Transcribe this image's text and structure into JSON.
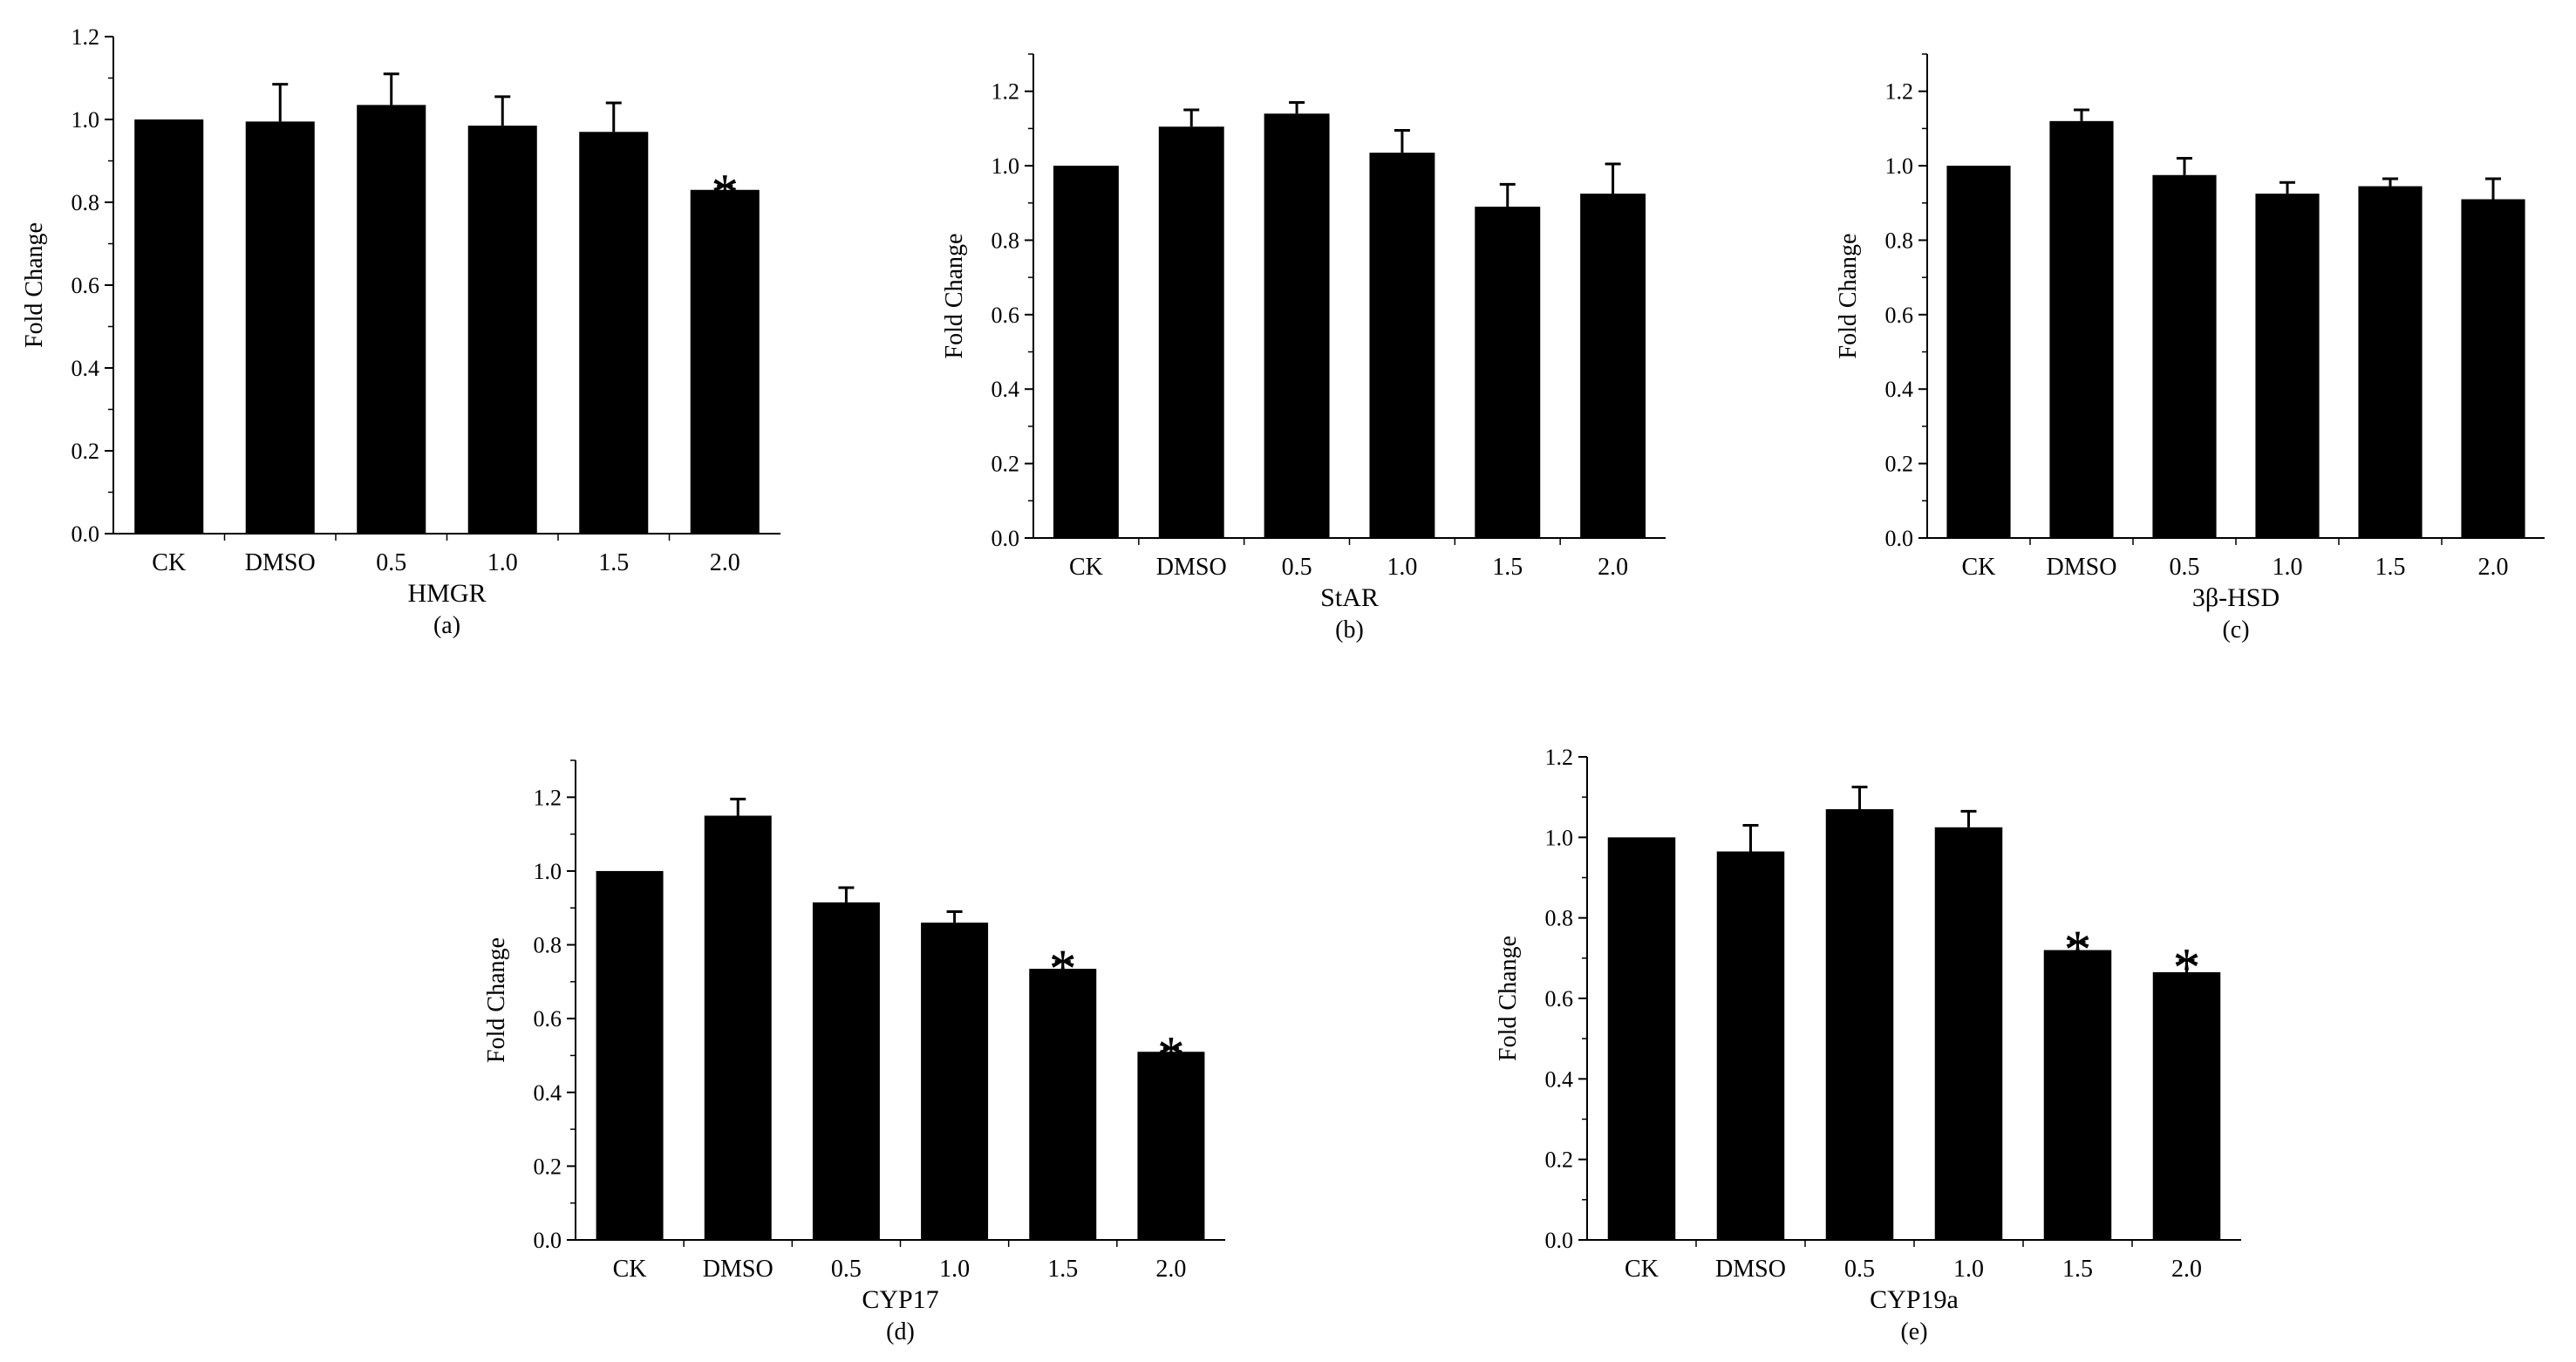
{
  "chart_data": [
    {
      "type": "bar",
      "panel_label": "(a)",
      "title": "",
      "xlabel": "HMGR",
      "ylabel": "Fold Change",
      "ylim": [
        0,
        1.2
      ],
      "yticks": [
        "0.0",
        "0.2",
        "0.4",
        "0.6",
        "0.8",
        "1.0",
        "1.2"
      ],
      "categories": [
        "CK",
        "DMSO",
        "0.5",
        "1.0",
        "1.5",
        "2.0"
      ],
      "values": [
        1.0,
        0.995,
        1.035,
        0.985,
        0.97,
        0.83
      ],
      "errors": [
        0,
        0.09,
        0.075,
        0.07,
        0.07,
        0.01
      ],
      "significance": [
        "",
        "",
        "",
        "",
        "",
        "*"
      ],
      "bar_color": "#000000",
      "grid": false
    },
    {
      "type": "bar",
      "panel_label": "(b)",
      "title": "",
      "xlabel": "StAR",
      "ylabel": "Fold Change",
      "ylim": [
        0,
        1.3
      ],
      "yticks": [
        "0.0",
        "0.2",
        "0.4",
        "0.6",
        "0.8",
        "1.0",
        "1.2"
      ],
      "categories": [
        "CK",
        "DMSO",
        "0.5",
        "1.0",
        "1.5",
        "2.0"
      ],
      "values": [
        1.0,
        1.105,
        1.14,
        1.035,
        0.89,
        0.925
      ],
      "errors": [
        0,
        0.045,
        0.03,
        0.06,
        0.06,
        0.08
      ],
      "significance": [
        "",
        "",
        "",
        "",
        "",
        ""
      ],
      "bar_color": "#000000",
      "grid": false
    },
    {
      "type": "bar",
      "panel_label": "(c)",
      "title": "",
      "xlabel": "3β-HSD",
      "ylabel": "Fold Change",
      "ylim": [
        0,
        1.3
      ],
      "yticks": [
        "0.0",
        "0.2",
        "0.4",
        "0.6",
        "0.8",
        "1.0",
        "1.2"
      ],
      "categories": [
        "CK",
        "DMSO",
        "0.5",
        "1.0",
        "1.5",
        "2.0"
      ],
      "values": [
        1.0,
        1.12,
        0.975,
        0.925,
        0.945,
        0.91
      ],
      "errors": [
        0,
        0.03,
        0.045,
        0.03,
        0.02,
        0.055
      ],
      "significance": [
        "",
        "",
        "",
        "",
        "",
        ""
      ],
      "bar_color": "#000000",
      "grid": false
    },
    {
      "type": "bar",
      "panel_label": "(d)",
      "title": "",
      "xlabel": "CYP17",
      "ylabel": "Fold Change",
      "ylim": [
        0,
        1.3
      ],
      "yticks": [
        "0.0",
        "0.2",
        "0.4",
        "0.6",
        "0.8",
        "1.0",
        "1.2"
      ],
      "categories": [
        "CK",
        "DMSO",
        "0.5",
        "1.0",
        "1.5",
        "2.0"
      ],
      "values": [
        1.0,
        1.15,
        0.915,
        0.86,
        0.735,
        0.51
      ],
      "errors": [
        0,
        0.045,
        0.04,
        0.03,
        0.02,
        0.01
      ],
      "significance": [
        "",
        "",
        "",
        "",
        "*",
        "*"
      ],
      "bar_color": "#000000",
      "grid": false
    },
    {
      "type": "bar",
      "panel_label": "(e)",
      "title": "",
      "xlabel": "CYP19a",
      "ylabel": "Fold Change",
      "ylim": [
        0,
        1.2
      ],
      "yticks": [
        "0.0",
        "0.2",
        "0.4",
        "0.6",
        "0.8",
        "1.0",
        "1.2"
      ],
      "categories": [
        "CK",
        "DMSO",
        "0.5",
        "1.0",
        "1.5",
        "2.0"
      ],
      "values": [
        1.0,
        0.965,
        1.07,
        1.025,
        0.72,
        0.665
      ],
      "errors": [
        0,
        0.065,
        0.055,
        0.04,
        0.02,
        0.03
      ],
      "significance": [
        "",
        "",
        "",
        "",
        "*",
        "*"
      ],
      "bar_color": "#000000",
      "grid": false
    }
  ]
}
